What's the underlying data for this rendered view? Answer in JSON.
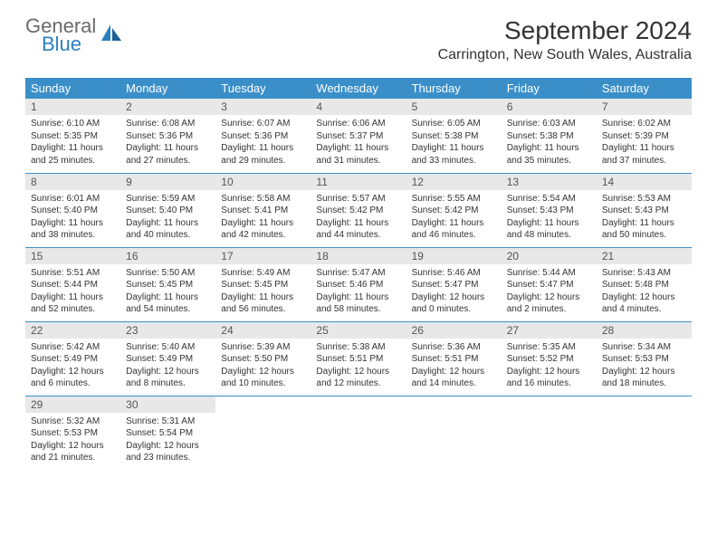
{
  "brand": {
    "line1": "General",
    "line2": "Blue"
  },
  "colors": {
    "header_bg": "#3b8fc9",
    "header_text": "#ffffff",
    "daynum_bg": "#e8e8e8",
    "daynum_text": "#555555",
    "body_text": "#333333",
    "rule": "#3b8fc9",
    "logo_gray": "#6a6a6a",
    "logo_blue": "#2a7fbf"
  },
  "title": "September 2024",
  "location": "Carrington, New South Wales, Australia",
  "weekdays": [
    "Sunday",
    "Monday",
    "Tuesday",
    "Wednesday",
    "Thursday",
    "Friday",
    "Saturday"
  ],
  "days": [
    {
      "n": "1",
      "sr": "6:10 AM",
      "ss": "5:35 PM",
      "dl": "11 hours and 25 minutes."
    },
    {
      "n": "2",
      "sr": "6:08 AM",
      "ss": "5:36 PM",
      "dl": "11 hours and 27 minutes."
    },
    {
      "n": "3",
      "sr": "6:07 AM",
      "ss": "5:36 PM",
      "dl": "11 hours and 29 minutes."
    },
    {
      "n": "4",
      "sr": "6:06 AM",
      "ss": "5:37 PM",
      "dl": "11 hours and 31 minutes."
    },
    {
      "n": "5",
      "sr": "6:05 AM",
      "ss": "5:38 PM",
      "dl": "11 hours and 33 minutes."
    },
    {
      "n": "6",
      "sr": "6:03 AM",
      "ss": "5:38 PM",
      "dl": "11 hours and 35 minutes."
    },
    {
      "n": "7",
      "sr": "6:02 AM",
      "ss": "5:39 PM",
      "dl": "11 hours and 37 minutes."
    },
    {
      "n": "8",
      "sr": "6:01 AM",
      "ss": "5:40 PM",
      "dl": "11 hours and 38 minutes."
    },
    {
      "n": "9",
      "sr": "5:59 AM",
      "ss": "5:40 PM",
      "dl": "11 hours and 40 minutes."
    },
    {
      "n": "10",
      "sr": "5:58 AM",
      "ss": "5:41 PM",
      "dl": "11 hours and 42 minutes."
    },
    {
      "n": "11",
      "sr": "5:57 AM",
      "ss": "5:42 PM",
      "dl": "11 hours and 44 minutes."
    },
    {
      "n": "12",
      "sr": "5:55 AM",
      "ss": "5:42 PM",
      "dl": "11 hours and 46 minutes."
    },
    {
      "n": "13",
      "sr": "5:54 AM",
      "ss": "5:43 PM",
      "dl": "11 hours and 48 minutes."
    },
    {
      "n": "14",
      "sr": "5:53 AM",
      "ss": "5:43 PM",
      "dl": "11 hours and 50 minutes."
    },
    {
      "n": "15",
      "sr": "5:51 AM",
      "ss": "5:44 PM",
      "dl": "11 hours and 52 minutes."
    },
    {
      "n": "16",
      "sr": "5:50 AM",
      "ss": "5:45 PM",
      "dl": "11 hours and 54 minutes."
    },
    {
      "n": "17",
      "sr": "5:49 AM",
      "ss": "5:45 PM",
      "dl": "11 hours and 56 minutes."
    },
    {
      "n": "18",
      "sr": "5:47 AM",
      "ss": "5:46 PM",
      "dl": "11 hours and 58 minutes."
    },
    {
      "n": "19",
      "sr": "5:46 AM",
      "ss": "5:47 PM",
      "dl": "12 hours and 0 minutes."
    },
    {
      "n": "20",
      "sr": "5:44 AM",
      "ss": "5:47 PM",
      "dl": "12 hours and 2 minutes."
    },
    {
      "n": "21",
      "sr": "5:43 AM",
      "ss": "5:48 PM",
      "dl": "12 hours and 4 minutes."
    },
    {
      "n": "22",
      "sr": "5:42 AM",
      "ss": "5:49 PM",
      "dl": "12 hours and 6 minutes."
    },
    {
      "n": "23",
      "sr": "5:40 AM",
      "ss": "5:49 PM",
      "dl": "12 hours and 8 minutes."
    },
    {
      "n": "24",
      "sr": "5:39 AM",
      "ss": "5:50 PM",
      "dl": "12 hours and 10 minutes."
    },
    {
      "n": "25",
      "sr": "5:38 AM",
      "ss": "5:51 PM",
      "dl": "12 hours and 12 minutes."
    },
    {
      "n": "26",
      "sr": "5:36 AM",
      "ss": "5:51 PM",
      "dl": "12 hours and 14 minutes."
    },
    {
      "n": "27",
      "sr": "5:35 AM",
      "ss": "5:52 PM",
      "dl": "12 hours and 16 minutes."
    },
    {
      "n": "28",
      "sr": "5:34 AM",
      "ss": "5:53 PM",
      "dl": "12 hours and 18 minutes."
    },
    {
      "n": "29",
      "sr": "5:32 AM",
      "ss": "5:53 PM",
      "dl": "12 hours and 21 minutes."
    },
    {
      "n": "30",
      "sr": "5:31 AM",
      "ss": "5:54 PM",
      "dl": "12 hours and 23 minutes."
    }
  ],
  "labels": {
    "sunrise": "Sunrise:",
    "sunset": "Sunset:",
    "daylight": "Daylight:"
  }
}
